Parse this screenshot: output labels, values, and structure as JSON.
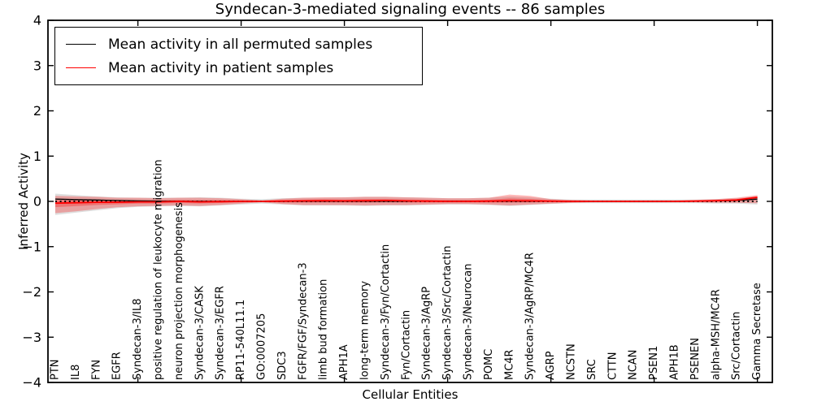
{
  "chart_data": {
    "type": "line",
    "title": "Syndecan-3-mediated signaling events -- 86 samples",
    "xlabel": "Cellular Entities",
    "ylabel": "Inferred Activity",
    "ylim": [
      -4,
      4
    ],
    "ytick_labels": [
      "4",
      "3",
      "2",
      "1",
      "0",
      "−1",
      "−2",
      "−3",
      "−4"
    ],
    "ytick_values": [
      4,
      3,
      2,
      1,
      0,
      -1,
      -2,
      -3,
      -4
    ],
    "grid": false,
    "legend_position": "upper left",
    "zero_line": {
      "style": "dotted",
      "color": "#000000",
      "y": 0
    },
    "colors": {
      "permuted_line": "#000000",
      "patient_line": "#ff0000",
      "permuted_band_fill": "rgba(0,0,0,0.13)",
      "patient_band_fill": "rgba(255,0,0,0.28)"
    },
    "layout": {
      "x_major_tick_indices": [
        4,
        9,
        14,
        19,
        24,
        29,
        34
      ],
      "x_tick_label_rotation": 90
    },
    "categories": [
      "PTN",
      "IL8",
      "FYN",
      "EGFR",
      "Syndecan-3/IL8",
      "positive regulation of leukocyte migration",
      "neuron projection morphogenesis",
      "Syndecan-3/CASK",
      "Syndecan-3/EGFR",
      "RP11-540L11.1",
      "GO:0007205",
      "SDC3",
      "FGFR/FGF/Syndecan-3",
      "limb bud formation",
      "APH1A",
      "long-term memory",
      "Syndecan-3/Fyn/Cortactin",
      "Fyn/Cortactin",
      "Syndecan-3/AgRP",
      "Syndecan-3/Src/Cortactin",
      "Syndecan-3/Neurocan",
      "POMC",
      "MC4R",
      "Syndecan-3/AgRP/MC4R",
      "AGRP",
      "NCSTN",
      "SRC",
      "CTTN",
      "NCAN",
      "PSEN1",
      "APH1B",
      "PSENEN",
      "alpha-MSH/MC4R",
      "Src/Cortactin",
      "Gamma Secretase"
    ],
    "series": [
      {
        "name": "Mean activity in all permuted samples",
        "color": "#000000",
        "values": [
          0.05,
          0.04,
          0.03,
          0.02,
          0.01,
          0.005,
          0.002,
          0,
          0,
          0,
          0,
          0,
          0.002,
          0.003,
          0.003,
          0.004,
          0.004,
          0.003,
          0.002,
          0.002,
          0.002,
          0.003,
          0.005,
          0.004,
          0.002,
          0,
          0,
          0,
          0,
          0,
          0,
          0.002,
          0.01,
          0.02,
          0.05
        ],
        "band_upper": [
          0.17,
          0.14,
          0.11,
          0.09,
          0.08,
          0.08,
          0.08,
          0.09,
          0.08,
          0.06,
          0.05,
          0.07,
          0.08,
          0.08,
          0.09,
          0.1,
          0.1,
          0.09,
          0.08,
          0.07,
          0.07,
          0.08,
          0.11,
          0.09,
          0.06,
          0.04,
          0.04,
          0.04,
          0.04,
          0.04,
          0.04,
          0.04,
          0.05,
          0.07,
          0.11
        ],
        "band_lower": [
          -0.3,
          -0.25,
          -0.2,
          -0.15,
          -0.12,
          -0.11,
          -0.1,
          -0.11,
          -0.09,
          -0.07,
          -0.05,
          -0.07,
          -0.09,
          -0.09,
          -0.09,
          -0.1,
          -0.09,
          -0.09,
          -0.08,
          -0.07,
          -0.07,
          -0.08,
          -0.1,
          -0.08,
          -0.06,
          -0.04,
          -0.04,
          -0.04,
          -0.04,
          -0.04,
          -0.04,
          -0.04,
          -0.05,
          -0.05,
          -0.07
        ]
      },
      {
        "name": "Mean activity in patient samples",
        "color": "#ff0000",
        "values": [
          -0.04,
          -0.03,
          -0.02,
          -0.02,
          -0.01,
          -0.01,
          0,
          -0.01,
          -0.005,
          0,
          0,
          0.005,
          0.01,
          0.015,
          0.01,
          0.015,
          0.02,
          0.01,
          0.005,
          0,
          0,
          0.005,
          0.015,
          0.01,
          0.005,
          0,
          0,
          0,
          0,
          0,
          0,
          0.005,
          0.015,
          0.03,
          0.09
        ],
        "band_upper": [
          0.12,
          0.11,
          0.1,
          0.08,
          0.08,
          0.07,
          0.08,
          0.08,
          0.07,
          0.05,
          0.02,
          0.06,
          0.08,
          0.09,
          0.09,
          0.1,
          0.1,
          0.09,
          0.08,
          0.07,
          0.07,
          0.08,
          0.15,
          0.12,
          0.05,
          0.03,
          0.02,
          0.02,
          0.02,
          0.02,
          0.02,
          0.03,
          0.05,
          0.08,
          0.14
        ],
        "band_lower": [
          -0.26,
          -0.22,
          -0.17,
          -0.13,
          -0.11,
          -0.1,
          -0.09,
          -0.1,
          -0.08,
          -0.05,
          -0.02,
          -0.06,
          -0.08,
          -0.08,
          -0.08,
          -0.09,
          -0.08,
          -0.08,
          -0.07,
          -0.06,
          -0.06,
          -0.07,
          -0.09,
          -0.07,
          -0.05,
          -0.03,
          -0.02,
          -0.02,
          -0.02,
          -0.02,
          -0.02,
          -0.02,
          -0.03,
          -0.03,
          -0.04
        ]
      }
    ]
  }
}
